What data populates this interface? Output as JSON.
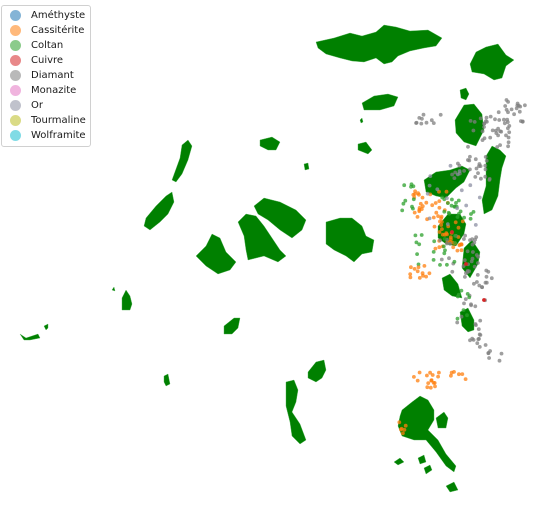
{
  "legend": {
    "entries": [
      {
        "label": "Améthyste",
        "color": "#1f77b4"
      },
      {
        "label": "Cassitérite",
        "color": "#ff7f0e"
      },
      {
        "label": "Coltan",
        "color": "#2ca02c"
      },
      {
        "label": "Cuivre",
        "color": "#d62728"
      },
      {
        "label": "Diamant",
        "color": "#7f7f7f"
      },
      {
        "label": "Monazite",
        "color": "#e377c2"
      },
      {
        "label": "Or",
        "color": "#8c8fa3"
      },
      {
        "label": "Tourmaline",
        "color": "#bcbd22"
      },
      {
        "label": "Wolframite",
        "color": "#17becf"
      }
    ]
  },
  "map_colors": {
    "area_fill": "#008000",
    "area_stroke": "#4caf50"
  }
}
